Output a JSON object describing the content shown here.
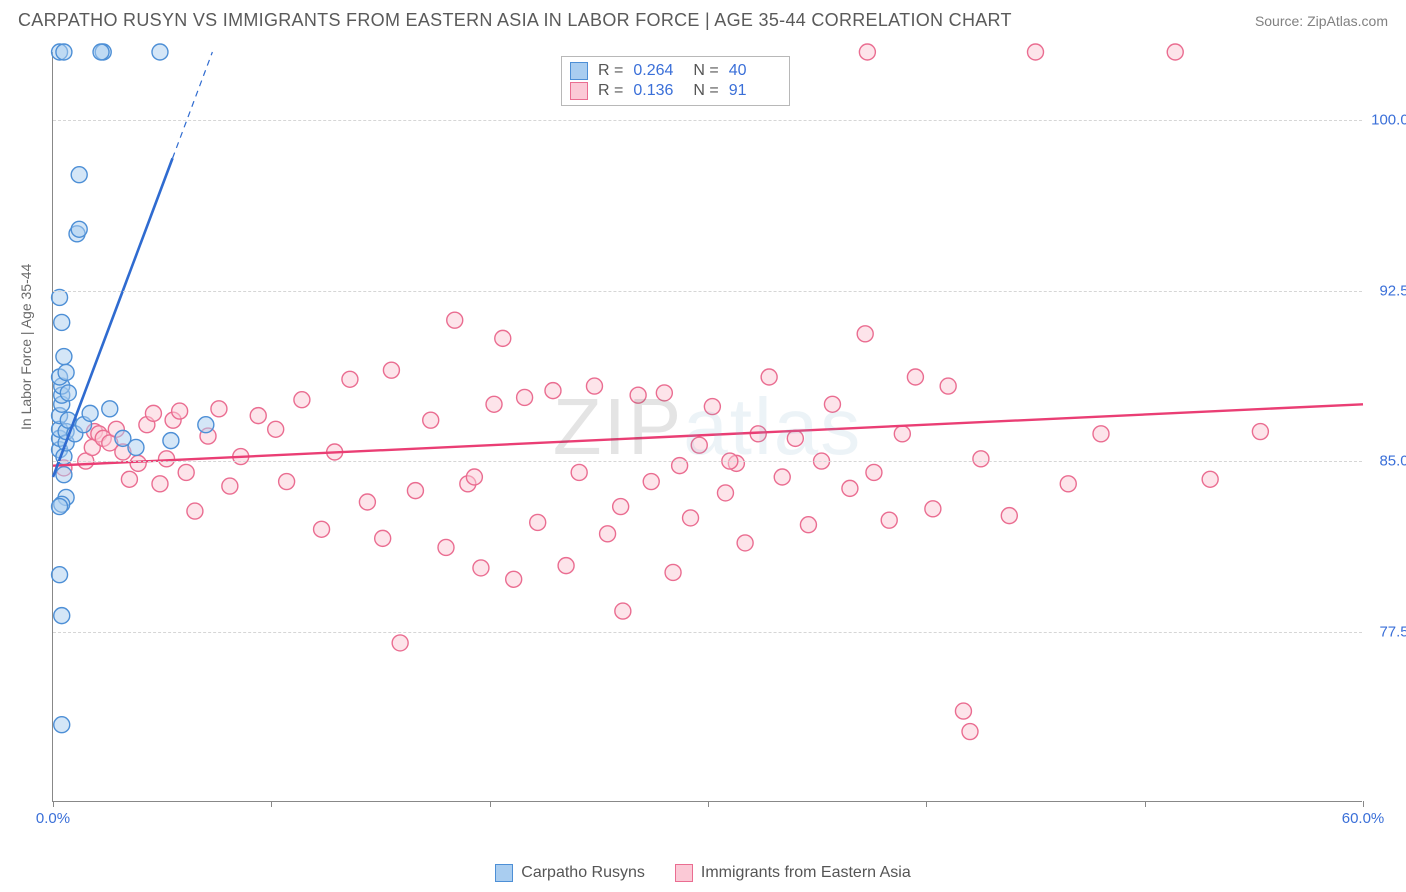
{
  "header": {
    "title": "CARPATHO RUSYN VS IMMIGRANTS FROM EASTERN ASIA IN LABOR FORCE | AGE 35-44 CORRELATION CHART",
    "source": "Source: ZipAtlas.com"
  },
  "chart": {
    "type": "scatter",
    "ylabel": "In Labor Force | Age 35-44",
    "xlim": [
      0,
      60
    ],
    "ylim": [
      70,
      103
    ],
    "xticks": [
      {
        "v": 0,
        "label": "0.0%"
      },
      {
        "v": 10,
        "label": ""
      },
      {
        "v": 20,
        "label": ""
      },
      {
        "v": 30,
        "label": ""
      },
      {
        "v": 40,
        "label": ""
      },
      {
        "v": 50,
        "label": ""
      },
      {
        "v": 60,
        "label": "60.0%"
      }
    ],
    "yticks": [
      {
        "v": 77.5,
        "label": "77.5%"
      },
      {
        "v": 85.0,
        "label": "85.0%"
      },
      {
        "v": 92.5,
        "label": "92.5%"
      },
      {
        "v": 100.0,
        "label": "100.0%"
      }
    ],
    "background_color": "#ffffff",
    "grid_color": "#d6d6d6",
    "marker_radius": 8,
    "marker_stroke_width": 1.4,
    "series": {
      "blue": {
        "label": "Carpatho Rusyns",
        "fill": "#a9cdf0",
        "stroke": "#4d8fd6",
        "fill_opacity": 0.5,
        "trend": {
          "x1": 0,
          "y1": 84.3,
          "x2": 7.3,
          "y2": 103,
          "dash_continue": true,
          "color": "#2f6bd0",
          "width": 2.6
        },
        "points": [
          [
            0.3,
            85.5
          ],
          [
            0.3,
            86.0
          ],
          [
            0.3,
            86.4
          ],
          [
            0.3,
            87.0
          ],
          [
            0.4,
            87.5
          ],
          [
            0.4,
            87.9
          ],
          [
            0.4,
            88.3
          ],
          [
            0.3,
            88.7
          ],
          [
            0.5,
            85.2
          ],
          [
            0.6,
            85.8
          ],
          [
            0.6,
            86.3
          ],
          [
            0.7,
            86.8
          ],
          [
            0.5,
            84.4
          ],
          [
            0.6,
            83.4
          ],
          [
            0.4,
            83.1
          ],
          [
            0.3,
            83.0
          ],
          [
            0.3,
            92.2
          ],
          [
            0.4,
            91.1
          ],
          [
            0.5,
            89.6
          ],
          [
            0.7,
            88.0
          ],
          [
            0.6,
            88.9
          ],
          [
            0.3,
            80.0
          ],
          [
            0.4,
            78.2
          ],
          [
            0.4,
            73.4
          ],
          [
            1.1,
            95.0
          ],
          [
            1.2,
            95.2
          ],
          [
            1.2,
            97.6
          ],
          [
            2.3,
            103.0
          ],
          [
            2.2,
            103.0
          ],
          [
            4.9,
            103.0
          ],
          [
            0.3,
            103.0
          ],
          [
            0.5,
            103.0
          ],
          [
            2.6,
            87.3
          ],
          [
            3.2,
            86.0
          ],
          [
            3.8,
            85.6
          ],
          [
            5.4,
            85.9
          ],
          [
            1.0,
            86.2
          ],
          [
            1.4,
            86.6
          ],
          [
            1.7,
            87.1
          ],
          [
            7.0,
            86.6
          ]
        ]
      },
      "pink": {
        "label": "Immigrants from Eastern Asia",
        "fill": "#fbc9d6",
        "stroke": "#ea6d91",
        "fill_opacity": 0.5,
        "trend": {
          "x1": 0,
          "y1": 84.8,
          "x2": 60,
          "y2": 87.5,
          "dash_continue": false,
          "color": "#ea3e74",
          "width": 2.4
        },
        "points": [
          [
            0.5,
            84.7
          ],
          [
            1.5,
            85.0
          ],
          [
            1.8,
            85.6
          ],
          [
            1.9,
            86.3
          ],
          [
            2.1,
            86.2
          ],
          [
            2.3,
            86.0
          ],
          [
            2.6,
            85.8
          ],
          [
            2.9,
            86.4
          ],
          [
            3.2,
            85.4
          ],
          [
            3.5,
            84.2
          ],
          [
            3.9,
            84.9
          ],
          [
            4.3,
            86.6
          ],
          [
            4.6,
            87.1
          ],
          [
            4.9,
            84.0
          ],
          [
            5.2,
            85.1
          ],
          [
            5.5,
            86.8
          ],
          [
            5.8,
            87.2
          ],
          [
            6.1,
            84.5
          ],
          [
            6.5,
            82.8
          ],
          [
            7.1,
            86.1
          ],
          [
            7.6,
            87.3
          ],
          [
            8.1,
            83.9
          ],
          [
            8.6,
            85.2
          ],
          [
            9.4,
            87.0
          ],
          [
            10.2,
            86.4
          ],
          [
            10.7,
            84.1
          ],
          [
            11.4,
            87.7
          ],
          [
            12.3,
            82.0
          ],
          [
            12.9,
            85.4
          ],
          [
            13.6,
            88.6
          ],
          [
            14.4,
            83.2
          ],
          [
            15.1,
            81.6
          ],
          [
            15.5,
            89.0
          ],
          [
            15.9,
            77.0
          ],
          [
            16.6,
            83.7
          ],
          [
            17.3,
            86.8
          ],
          [
            18.0,
            81.2
          ],
          [
            18.4,
            91.2
          ],
          [
            19.0,
            84.0
          ],
          [
            19.6,
            80.3
          ],
          [
            20.2,
            87.5
          ],
          [
            20.6,
            90.4
          ],
          [
            21.1,
            79.8
          ],
          [
            21.6,
            87.8
          ],
          [
            22.2,
            82.3
          ],
          [
            22.9,
            88.1
          ],
          [
            23.5,
            80.4
          ],
          [
            24.1,
            84.5
          ],
          [
            24.8,
            88.3
          ],
          [
            25.4,
            81.8
          ],
          [
            26.0,
            83.0
          ],
          [
            26.1,
            78.4
          ],
          [
            26.8,
            87.9
          ],
          [
            27.4,
            84.1
          ],
          [
            28.0,
            88.0
          ],
          [
            28.4,
            80.1
          ],
          [
            28.7,
            84.8
          ],
          [
            29.2,
            82.5
          ],
          [
            29.6,
            85.7
          ],
          [
            30.2,
            87.4
          ],
          [
            30.8,
            83.6
          ],
          [
            31.3,
            84.9
          ],
          [
            31.7,
            81.4
          ],
          [
            32.3,
            86.2
          ],
          [
            32.8,
            88.7
          ],
          [
            33.4,
            84.3
          ],
          [
            34.0,
            86.0
          ],
          [
            34.6,
            82.2
          ],
          [
            35.2,
            85.0
          ],
          [
            35.7,
            87.5
          ],
          [
            36.5,
            83.8
          ],
          [
            37.2,
            90.6
          ],
          [
            37.3,
            103.0
          ],
          [
            37.6,
            84.5
          ],
          [
            38.3,
            82.4
          ],
          [
            38.9,
            86.2
          ],
          [
            39.5,
            88.7
          ],
          [
            40.3,
            82.9
          ],
          [
            41.0,
            88.3
          ],
          [
            41.7,
            74.0
          ],
          [
            42.0,
            73.1
          ],
          [
            42.5,
            85.1
          ],
          [
            43.8,
            82.6
          ],
          [
            45.0,
            103.0
          ],
          [
            46.5,
            84.0
          ],
          [
            48.0,
            86.2
          ],
          [
            51.4,
            103.0
          ],
          [
            53.0,
            84.2
          ],
          [
            55.3,
            86.3
          ],
          [
            31.0,
            85.0
          ],
          [
            19.3,
            84.3
          ]
        ]
      }
    },
    "stats": [
      {
        "swatch": "blue",
        "R": "0.264",
        "N": "40"
      },
      {
        "swatch": "pink",
        "R": "0.136",
        "N": "91"
      }
    ],
    "watermark": {
      "part1": "ZIP",
      "part2": "atlas"
    },
    "legend": [
      {
        "swatch": "blue",
        "text": "Carpatho Rusyns"
      },
      {
        "swatch": "pink",
        "text": "Immigrants from Eastern Asia"
      }
    ]
  }
}
